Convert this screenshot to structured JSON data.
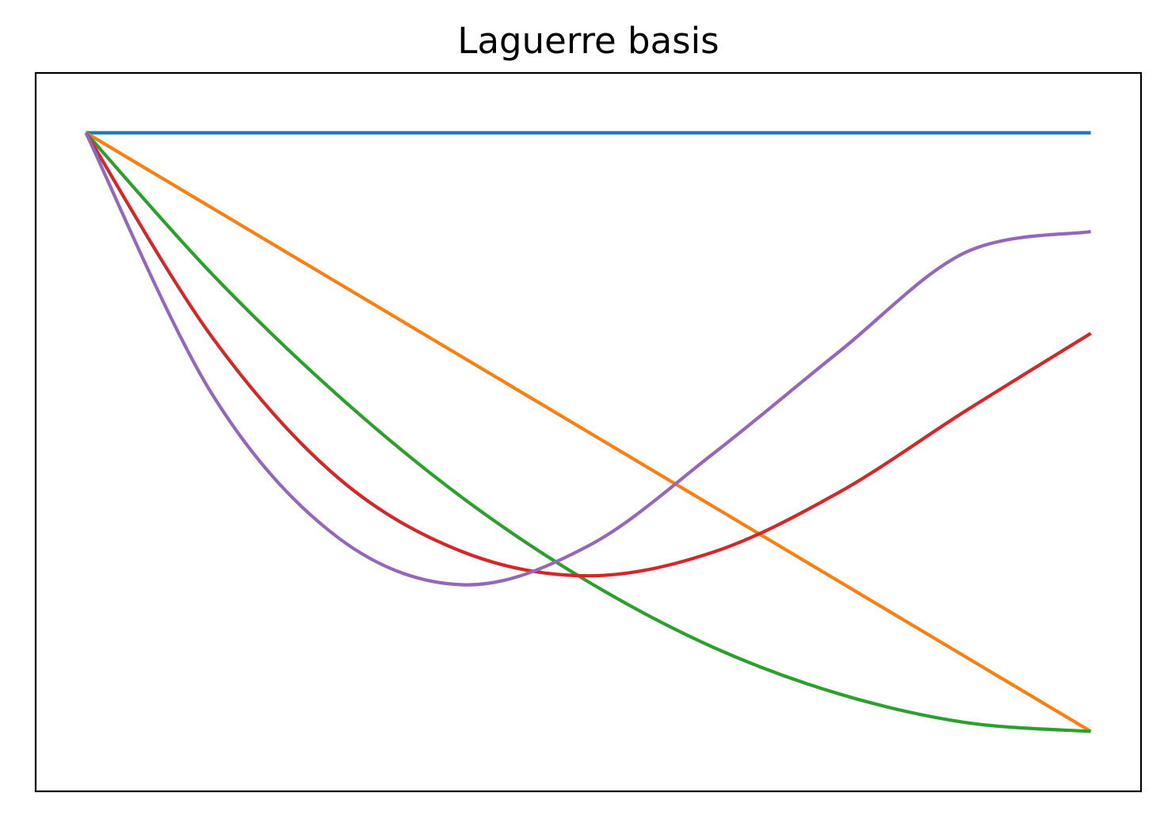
{
  "chart_data": {
    "type": "line",
    "title": "Laguerre basis",
    "xlabel": "",
    "ylabel": "",
    "xlim": [
      -0.1,
      2.1
    ],
    "ylim": [
      -1.2,
      1.2
    ],
    "grid": false,
    "x_ticks_shown": false,
    "y_ticks_shown": false,
    "series": [
      {
        "color": "#1f77b4",
        "x": [
          0.0,
          0.25,
          0.5,
          0.75,
          1.0,
          1.25,
          1.5,
          1.75,
          2.0
        ],
        "y": [
          1.0,
          1.0,
          1.0,
          1.0,
          1.0,
          1.0,
          1.0,
          1.0,
          1.0
        ]
      },
      {
        "color": "#ff7f0e",
        "x": [
          0.0,
          0.25,
          0.5,
          0.75,
          1.0,
          1.25,
          1.5,
          1.75,
          2.0
        ],
        "y": [
          1.0,
          0.75,
          0.5,
          0.25,
          0.0,
          -0.25,
          -0.5,
          -0.75,
          -1.0
        ]
      },
      {
        "color": "#2ca02c",
        "x": [
          0.0,
          0.25,
          0.5,
          0.75,
          1.0,
          1.25,
          1.5,
          1.75,
          2.0
        ],
        "y": [
          1.0,
          0.53,
          0.125,
          -0.22,
          -0.5,
          -0.72,
          -0.875,
          -0.97,
          -1.0
        ]
      },
      {
        "color": "#d62728",
        "x": [
          0.0,
          0.25,
          0.5,
          0.75,
          1.0,
          1.25,
          1.5,
          1.75,
          2.0
        ],
        "y": [
          1.0,
          0.32,
          -0.15,
          -0.4,
          -0.48,
          -0.4,
          -0.2,
          0.07,
          0.33
        ]
      },
      {
        "color": "#9467bd",
        "x": [
          0.0,
          0.25,
          0.5,
          0.75,
          1.0,
          1.25,
          1.5,
          1.75,
          2.0
        ],
        "y": [
          1.0,
          0.13,
          -0.35,
          -0.51,
          -0.38,
          -0.07,
          0.27,
          0.6,
          0.67
        ]
      }
    ]
  }
}
